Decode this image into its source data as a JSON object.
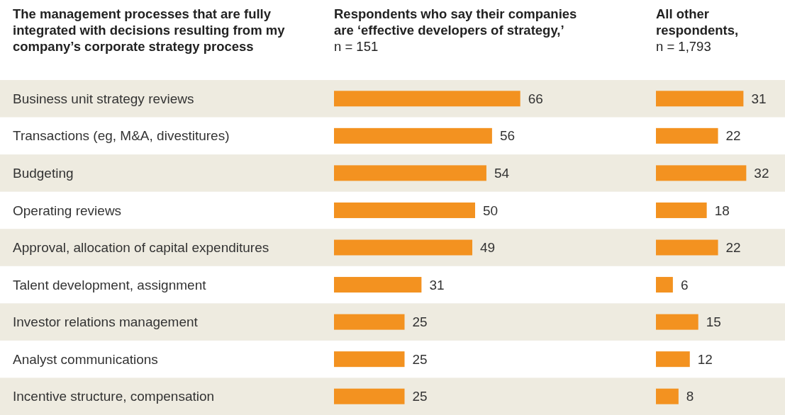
{
  "chart_data": [
    {
      "type": "bar",
      "orientation": "horizontal",
      "title": "Respondents who say their companies are ‘effective developers of strategy,’",
      "subtitle": "n = 151",
      "ylabel": "The management processes that are fully integrated with decisions resulting from my company’s corporate strategy process",
      "categories": [
        "Business unit strategy reviews",
        "Transactions (eg, M&A, divestitures)",
        "Budgeting",
        "Operating reviews",
        "Approval, allocation of capital expenditures",
        "Talent development, assignment",
        "Investor relations management",
        "Analyst communications",
        "Incentive structure, compensation"
      ],
      "values": [
        66,
        56,
        54,
        50,
        49,
        31,
        25,
        25,
        25
      ],
      "color": "#f39220",
      "data_labels": true,
      "tick_labels": "y"
    },
    {
      "type": "bar",
      "orientation": "horizontal",
      "title": "All other respondents,",
      "subtitle": "n = 1,793",
      "categories": [
        null,
        null,
        null,
        null,
        null,
        null,
        null,
        null,
        null
      ],
      "values": [
        31,
        22,
        32,
        18,
        22,
        6,
        15,
        12,
        8
      ],
      "color": "#f39220",
      "data_labels": true,
      "tick_labels": false
    }
  ]
}
